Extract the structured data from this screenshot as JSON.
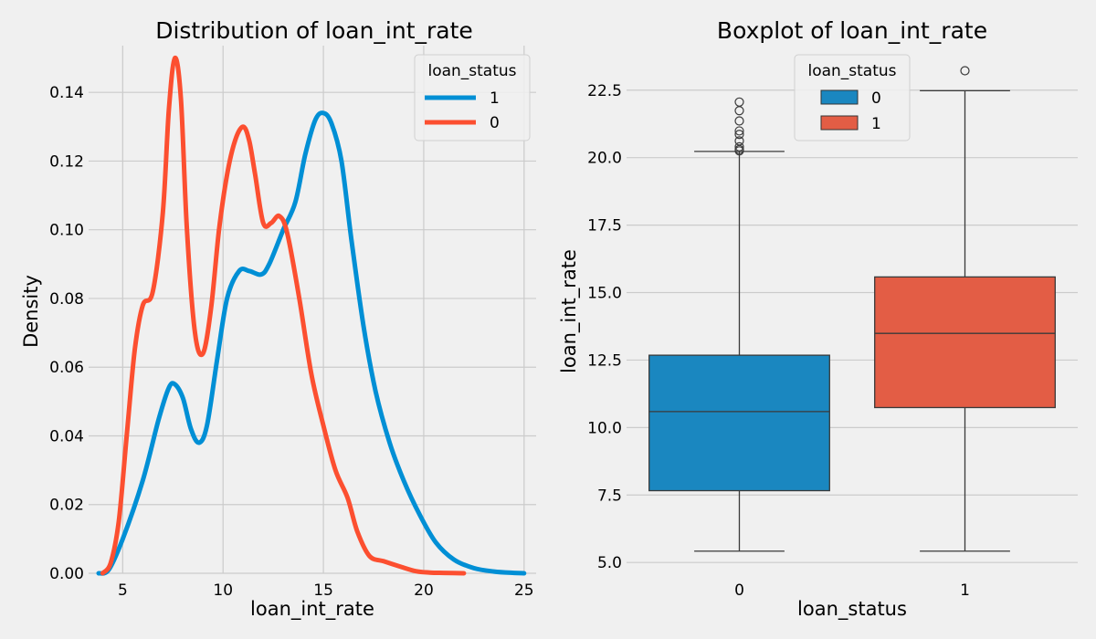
{
  "chart_data": [
    {
      "type": "line",
      "title": "Distribution of loan_int_rate",
      "xlabel": "loan_int_rate",
      "ylabel": "Density",
      "xlim": [
        3.3,
        25.6
      ],
      "ylim": [
        0,
        0.1536
      ],
      "xticks": [
        5,
        10,
        15,
        20,
        25
      ],
      "yticks": [
        0.0,
        0.02,
        0.04,
        0.06,
        0.08,
        0.1,
        0.12,
        0.14
      ],
      "ytick_labels": [
        "0.00",
        "0.02",
        "0.04",
        "0.06",
        "0.08",
        "0.10",
        "0.12",
        "0.14"
      ],
      "grid": true,
      "legend": {
        "title": "loan_status",
        "placement": "top-right"
      },
      "series": [
        {
          "name": "1",
          "color": "#008fd5",
          "x": [
            3.8,
            4.3,
            5.0,
            6.0,
            6.8,
            7.3,
            7.6,
            8.0,
            8.4,
            8.8,
            9.2,
            9.7,
            10.2,
            10.8,
            11.3,
            11.9,
            12.3,
            13.0,
            13.6,
            14.1,
            14.6,
            15.0,
            15.4,
            15.9,
            16.4,
            17.0,
            17.6,
            18.3,
            19.0,
            19.8,
            20.6,
            21.5,
            22.5,
            23.5,
            24.5,
            25.0
          ],
          "y": [
            0.0,
            0.001,
            0.01,
            0.027,
            0.045,
            0.054,
            0.055,
            0.051,
            0.042,
            0.038,
            0.043,
            0.062,
            0.08,
            0.088,
            0.088,
            0.087,
            0.09,
            0.1,
            0.108,
            0.122,
            0.132,
            0.134,
            0.131,
            0.12,
            0.097,
            0.072,
            0.053,
            0.038,
            0.027,
            0.017,
            0.009,
            0.004,
            0.0015,
            0.0005,
            0.0001,
            0.0
          ]
        },
        {
          "name": "0",
          "color": "#fc4f30",
          "x": [
            4.0,
            4.4,
            4.8,
            5.2,
            5.6,
            6.0,
            6.5,
            7.0,
            7.3,
            7.6,
            7.9,
            8.2,
            8.6,
            9.0,
            9.4,
            9.8,
            10.2,
            10.6,
            11.0,
            11.3,
            11.6,
            12.0,
            12.4,
            12.8,
            13.2,
            13.8,
            14.4,
            15.0,
            15.6,
            16.2,
            16.7,
            17.3,
            18.0,
            18.8,
            19.6,
            20.3,
            21.0,
            22.0
          ],
          "y": [
            0.0,
            0.003,
            0.015,
            0.04,
            0.065,
            0.078,
            0.082,
            0.105,
            0.135,
            0.15,
            0.138,
            0.1,
            0.07,
            0.064,
            0.077,
            0.1,
            0.116,
            0.126,
            0.13,
            0.126,
            0.116,
            0.102,
            0.102,
            0.104,
            0.099,
            0.08,
            0.058,
            0.043,
            0.03,
            0.022,
            0.012,
            0.005,
            0.0035,
            0.002,
            0.0006,
            0.0002,
            0.0001,
            0.0
          ]
        }
      ]
    },
    {
      "type": "box",
      "title": "Boxplot of loan_int_rate",
      "xlabel": "loan_status",
      "ylabel": "loan_int_rate",
      "categories": [
        "0",
        "1"
      ],
      "ylim": [
        4.6,
        24.15
      ],
      "yticks": [
        5.0,
        7.5,
        10.0,
        12.5,
        15.0,
        17.5,
        20.0,
        22.5
      ],
      "ytick_labels": [
        "5.0",
        "7.5",
        "10.0",
        "12.5",
        "15.0",
        "17.5",
        "20.0",
        "22.5"
      ],
      "grid": true,
      "legend": {
        "title": "loan_status",
        "placement": "top-center",
        "entries": [
          "0",
          "1"
        ]
      },
      "boxes": [
        {
          "category": "0",
          "color": "#1a87c0",
          "whisker_low": 5.42,
          "q1": 7.66,
          "median": 10.59,
          "q3": 12.68,
          "whisker_high": 20.23,
          "outliers": [
            20.25,
            20.3,
            20.4,
            20.62,
            20.86,
            20.99,
            21.36,
            21.74,
            22.06
          ]
        },
        {
          "category": "1",
          "color": "#e35d45",
          "whisker_low": 5.42,
          "q1": 10.74,
          "median": 13.49,
          "q3": 15.58,
          "whisker_high": 22.48,
          "outliers": [
            23.22
          ]
        }
      ]
    }
  ]
}
